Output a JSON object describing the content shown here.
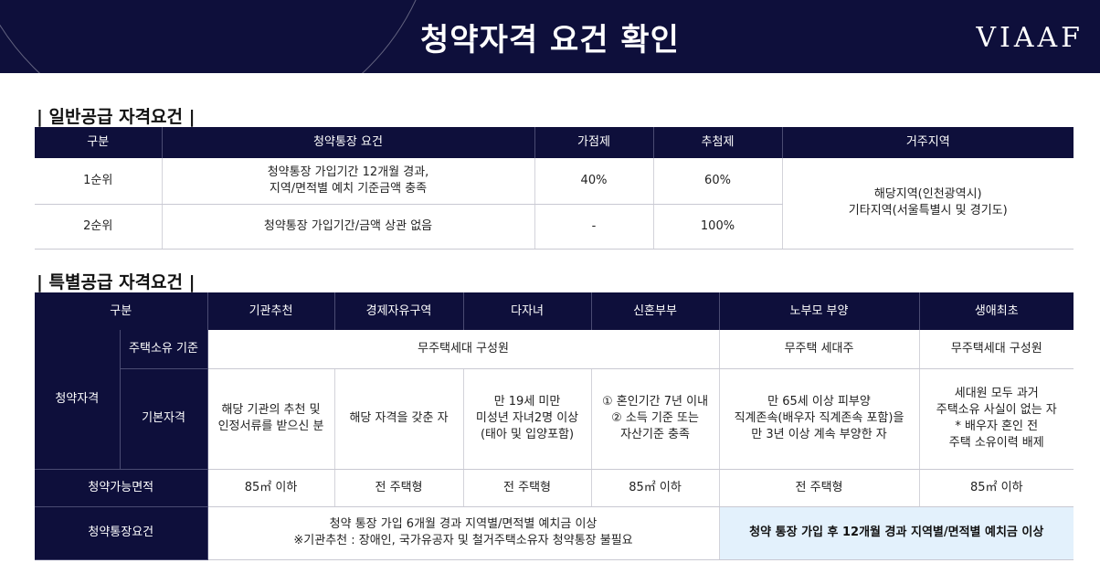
{
  "header": {
    "title": "청약자격 요건 확인",
    "logo": "VIAAF"
  },
  "general": {
    "section_title": "| 일반공급 자격요건 |",
    "headers": [
      "구분",
      "청약통장 요건",
      "가점제",
      "추첨제",
      "거주지역"
    ],
    "rows": [
      {
        "rank": "1순위",
        "requirement_line1": "청약통장 가입기간 12개월 경과,",
        "requirement_line2": "지역/면적별 예치 기준금액 충족",
        "point": "40%",
        "lottery": "60%"
      },
      {
        "rank": "2순위",
        "requirement_line1": "청약통장 가입기간/금액 상관 없음",
        "point": "-",
        "lottery": "100%"
      }
    ],
    "region_line1": "해당지역(인천광역시)",
    "region_line2": "기타지역(서울특별시 및 경기도)"
  },
  "special": {
    "section_title": "| 특별공급 자격요건 |",
    "headers": [
      "구분",
      "기관추천",
      "경제자유구역",
      "다자녀",
      "신혼부부",
      "노부모 부양",
      "생애최초"
    ],
    "qualification_label": "청약자격",
    "housing_label": "주택소유 기준",
    "housing_common": "무주택세대 구성원",
    "housing_elderly": "무주택 세대주",
    "housing_first": "무주택세대 구성원",
    "basic_label": "기본자격",
    "basic": {
      "institution": [
        "해당 기관의 추천 및",
        "인정서류를 받으신 분"
      ],
      "free_zone": [
        "해당 자격을 갖춘 자"
      ],
      "multi_child": [
        "만 19세 미만",
        "미성년 자녀2명 이상",
        "(태아 및 입양포함)"
      ],
      "newlywed": [
        "① 혼인기간 7년 이내",
        "② 소득 기준 또는",
        "자산기준 충족"
      ],
      "elderly": [
        "만 65세 이상 피부양",
        "직계존속(배우자 직계존속 포함)을",
        "만 3년 이상 계속 부양한 자"
      ],
      "first_time": [
        "세대원 모두 과거",
        "주택소유 사실이 없는 자",
        "* 배우자 혼인 전",
        "주택 소유이력 배제"
      ]
    },
    "area_label": "청약가능면적",
    "area": [
      "85㎡ 이하",
      "전 주택형",
      "전 주택형",
      "85㎡ 이하",
      "전 주택형",
      "85㎡ 이하"
    ],
    "account_label": "청약통장요건",
    "account_line1": "청약 통장 가입 6개월 경과 지역별/면적별 예치금 이상",
    "account_line2": "※기관추천 : 장애인, 국가유공자 및 철거주택소유자 청약통장 불필요",
    "account_highlight": "청약 통장 가입 후 12개월 경과 지역별/면적별 예치금 이상"
  }
}
